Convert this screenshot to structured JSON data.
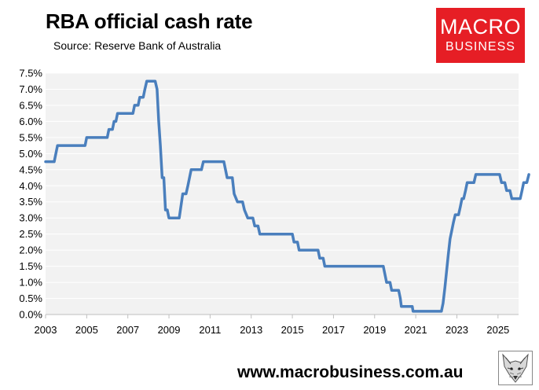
{
  "header": {
    "title": "RBA official cash rate",
    "subtitle": "Source: Reserve Bank of Australia"
  },
  "logo": {
    "line1": "MACRO",
    "line2": "BUSINESS",
    "color": "#e61e25"
  },
  "footer": {
    "url": "www.macrobusiness.com.au",
    "fox_icon": "fox-logo-icon"
  },
  "colors": {
    "line": "#4a7fbd",
    "plot_bg": "#f2f2f2",
    "grid": "#ffffff"
  },
  "chart_data": {
    "type": "line",
    "xlim": [
      2003,
      2026
    ],
    "ylim": [
      0,
      7.5
    ],
    "grid": true,
    "x_ticks": [
      2003,
      2005,
      2007,
      2009,
      2011,
      2013,
      2015,
      2017,
      2019,
      2021,
      2023,
      2025
    ],
    "x_tick_labels": [
      "2003",
      "2005",
      "2007",
      "2009",
      "2011",
      "2013",
      "2015",
      "2017",
      "2019",
      "2021",
      "2023",
      "2025"
    ],
    "y_ticks": [
      0,
      0.5,
      1,
      1.5,
      2,
      2.5,
      3,
      3.5,
      4,
      4.5,
      5,
      5.5,
      6,
      6.5,
      7,
      7.5
    ],
    "y_tick_labels": [
      "0.0%",
      "0.5%",
      "1.0%",
      "1.5%",
      "2.0%",
      "2.5%",
      "3.0%",
      "3.5%",
      "4.0%",
      "4.5%",
      "5.0%",
      "5.5%",
      "6.0%",
      "6.5%",
      "7.0%",
      "7.5%"
    ],
    "series": [
      {
        "points": [
          [
            2003.0,
            4.75
          ],
          [
            2003.42,
            4.75
          ],
          [
            2003.5,
            5.0
          ],
          [
            2003.58,
            5.25
          ],
          [
            2004.92,
            5.25
          ],
          [
            2005.0,
            5.5
          ],
          [
            2006.0,
            5.5
          ],
          [
            2006.08,
            5.75
          ],
          [
            2006.25,
            5.75
          ],
          [
            2006.33,
            6.0
          ],
          [
            2006.42,
            6.0
          ],
          [
            2006.5,
            6.25
          ],
          [
            2007.25,
            6.25
          ],
          [
            2007.33,
            6.5
          ],
          [
            2007.5,
            6.5
          ],
          [
            2007.58,
            6.75
          ],
          [
            2007.75,
            6.75
          ],
          [
            2007.83,
            7.0
          ],
          [
            2007.92,
            7.25
          ],
          [
            2008.33,
            7.25
          ],
          [
            2008.42,
            7.0
          ],
          [
            2008.5,
            6.0
          ],
          [
            2008.58,
            5.25
          ],
          [
            2008.67,
            4.25
          ],
          [
            2008.75,
            4.25
          ],
          [
            2008.83,
            3.25
          ],
          [
            2008.92,
            3.25
          ],
          [
            2009.0,
            3.0
          ],
          [
            2009.5,
            3.0
          ],
          [
            2009.67,
            3.75
          ],
          [
            2009.83,
            3.75
          ],
          [
            2009.92,
            4.0
          ],
          [
            2010.08,
            4.5
          ],
          [
            2010.58,
            4.5
          ],
          [
            2010.67,
            4.75
          ],
          [
            2011.67,
            4.75
          ],
          [
            2011.83,
            4.25
          ],
          [
            2012.08,
            4.25
          ],
          [
            2012.17,
            3.75
          ],
          [
            2012.33,
            3.5
          ],
          [
            2012.58,
            3.5
          ],
          [
            2012.67,
            3.25
          ],
          [
            2012.83,
            3.0
          ],
          [
            2013.08,
            3.0
          ],
          [
            2013.17,
            2.75
          ],
          [
            2013.33,
            2.75
          ],
          [
            2013.42,
            2.5
          ],
          [
            2014.67,
            2.5
          ],
          [
            2014.75,
            2.5
          ],
          [
            2015.0,
            2.5
          ],
          [
            2015.08,
            2.25
          ],
          [
            2015.25,
            2.25
          ],
          [
            2015.33,
            2.0
          ],
          [
            2016.25,
            2.0
          ],
          [
            2016.33,
            1.75
          ],
          [
            2016.5,
            1.75
          ],
          [
            2016.58,
            1.5
          ],
          [
            2019.42,
            1.5
          ],
          [
            2019.5,
            1.25
          ],
          [
            2019.58,
            1.0
          ],
          [
            2019.75,
            1.0
          ],
          [
            2019.83,
            0.75
          ],
          [
            2020.17,
            0.75
          ],
          [
            2020.25,
            0.5
          ],
          [
            2020.3,
            0.25
          ],
          [
            2020.83,
            0.25
          ],
          [
            2020.87,
            0.1
          ],
          [
            2022.25,
            0.1
          ],
          [
            2022.33,
            0.35
          ],
          [
            2022.42,
            0.85
          ],
          [
            2022.5,
            1.35
          ],
          [
            2022.58,
            1.85
          ],
          [
            2022.67,
            2.35
          ],
          [
            2022.75,
            2.6
          ],
          [
            2022.83,
            2.85
          ],
          [
            2022.92,
            3.1
          ],
          [
            2023.08,
            3.1
          ],
          [
            2023.17,
            3.35
          ],
          [
            2023.25,
            3.6
          ],
          [
            2023.33,
            3.6
          ],
          [
            2023.42,
            3.85
          ],
          [
            2023.5,
            4.1
          ],
          [
            2023.83,
            4.1
          ],
          [
            2023.92,
            4.35
          ],
          [
            2025.08,
            4.35
          ],
          [
            2025.17,
            4.1
          ],
          [
            2025.33,
            4.1
          ],
          [
            2025.42,
            3.85
          ],
          [
            2025.58,
            3.85
          ],
          [
            2025.67,
            3.6
          ],
          [
            2026.08,
            3.6
          ],
          [
            2026.17,
            3.85
          ],
          [
            2026.25,
            4.1
          ],
          [
            2026.4,
            4.1
          ],
          [
            2026.5,
            4.35
          ]
        ]
      }
    ]
  }
}
